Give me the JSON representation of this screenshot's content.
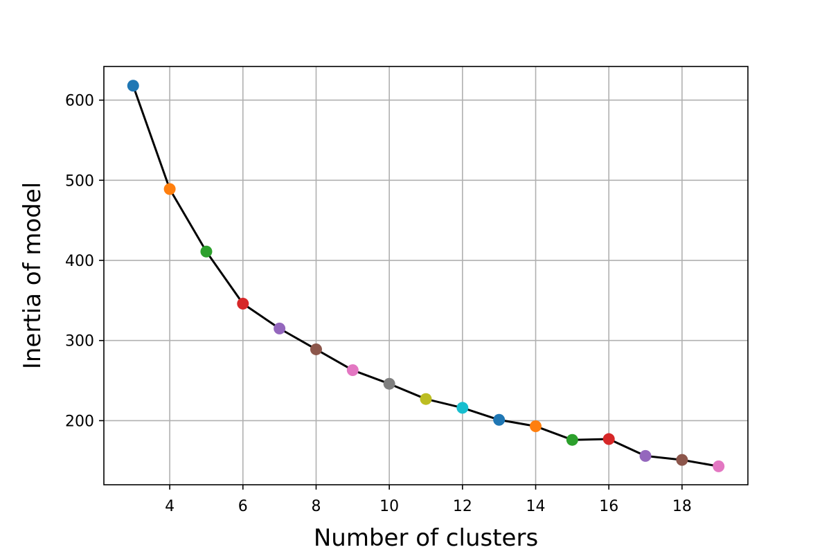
{
  "chart_data": {
    "type": "line",
    "title": "",
    "xlabel": "Number of clusters",
    "ylabel": "Inertia of model",
    "xlim": [
      2.2,
      19.8
    ],
    "ylim": [
      120,
      642
    ],
    "grid": true,
    "legend": "none",
    "x_ticks": [
      4,
      6,
      8,
      10,
      12,
      14,
      16,
      18
    ],
    "y_ticks": [
      200,
      300,
      400,
      500,
      600
    ],
    "line_color": "#000000",
    "series": [
      {
        "x": [
          3,
          4,
          5,
          6,
          7,
          8,
          9,
          10,
          11,
          12,
          13,
          14,
          15,
          16,
          17,
          18,
          19
        ],
        "values": [
          618,
          489,
          411,
          346,
          315,
          289,
          263,
          246,
          227,
          216,
          201,
          193,
          176,
          177,
          156,
          151,
          143
        ],
        "point_colors": [
          "#1f77b4",
          "#ff7f0e",
          "#2ca02c",
          "#d62728",
          "#9467bd",
          "#8c564b",
          "#e377c2",
          "#7f7f7f",
          "#bcbd22",
          "#17becf",
          "#1f77b4",
          "#ff7f0e",
          "#2ca02c",
          "#d62728",
          "#9467bd",
          "#8c564b",
          "#e377c2"
        ]
      }
    ]
  }
}
